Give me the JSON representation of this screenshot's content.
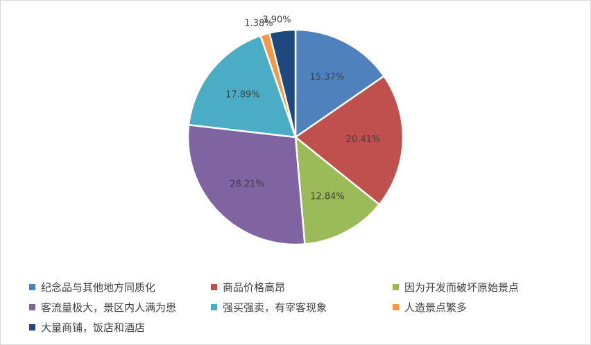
{
  "chart_data": {
    "type": "pie",
    "slices": [
      {
        "label": "纪念品与其他地方同质化",
        "value": 15.37,
        "display": "15.37%",
        "color": "#4F81BD"
      },
      {
        "label": "商品价格高昂",
        "value": 20.41,
        "display": "20.41%",
        "color": "#C0504D"
      },
      {
        "label": "因为开发而破坏原始景点",
        "value": 12.84,
        "display": "12.84%",
        "color": "#9BBB59"
      },
      {
        "label": "客流量极大，景区内人满为患",
        "value": 28.21,
        "display": "28.21%",
        "color": "#8064A2"
      },
      {
        "label": "强买强卖，有宰客现象",
        "value": 17.89,
        "display": "17.89%",
        "color": "#4BACC6"
      },
      {
        "label": "人造景点繁多",
        "value": 1.38,
        "display": "1.38%",
        "color": "#F79646"
      },
      {
        "label": "大量商铺，饭店和酒店",
        "value": 3.9,
        "display": "3.90%",
        "color": "#1F497D"
      }
    ],
    "legend_position": "bottom",
    "start_angle": "12 o'clock, clockwise"
  }
}
